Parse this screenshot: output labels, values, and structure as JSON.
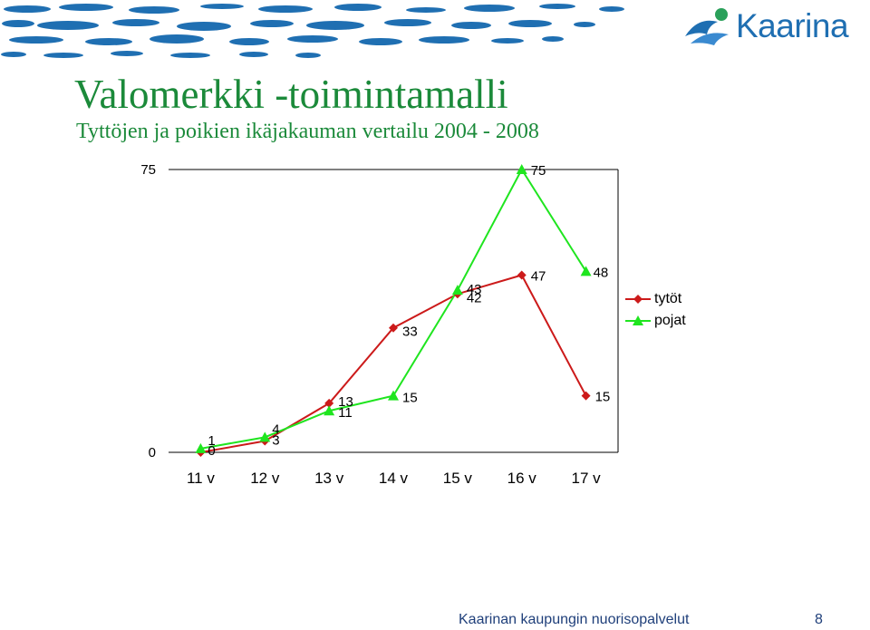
{
  "brand": {
    "logo_text": "Kaarina"
  },
  "title": "Valomerkki -toimintamalli",
  "subtitle": "Tyttöjen ja poikien ikäjakauman vertailu 2004 - 2008",
  "footer": {
    "text": "Kaarinan kaupungin nuorisopalvelut",
    "page": "8"
  },
  "colors": {
    "title_green": "#1b8a3a",
    "tytot": "#cc1a1a",
    "pojat": "#1fe51f",
    "brand_blue": "#1f6fb2"
  },
  "chart_data": {
    "type": "line",
    "categories": [
      "11 v",
      "12 v",
      "13 v",
      "14 v",
      "15 v",
      "16 v",
      "17 v"
    ],
    "y_ticks": [
      "0",
      "75"
    ],
    "ylim": [
      0,
      75
    ],
    "series": [
      {
        "name": "tytöt",
        "marker": "diamond",
        "color": "#cc1a1a",
        "values": [
          0,
          3,
          13,
          33,
          42,
          47,
          15
        ],
        "labels": [
          "0",
          "3",
          "13",
          "33",
          "42",
          "47",
          "15"
        ]
      },
      {
        "name": "pojat",
        "marker": "triangle",
        "color": "#1fe51f",
        "values": [
          1,
          4,
          11,
          15,
          43,
          75,
          48
        ],
        "labels": [
          "1",
          "4",
          "11",
          "15",
          "43",
          "75",
          "48"
        ]
      }
    ],
    "legend_position": "right",
    "grid": false
  }
}
